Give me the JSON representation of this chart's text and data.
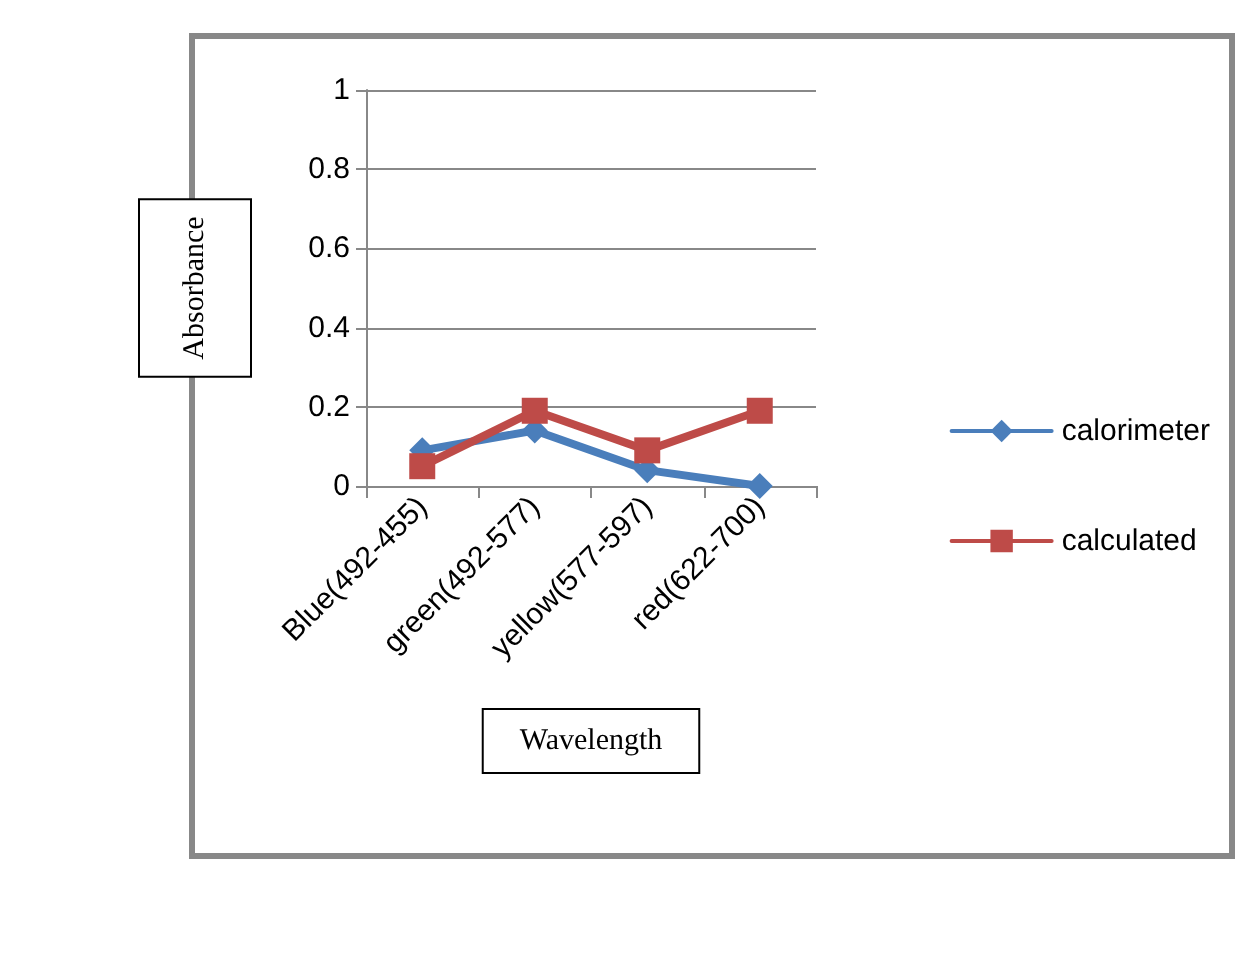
{
  "chart_data": {
    "type": "line",
    "xlabel": "Wavelength",
    "ylabel": "Absorbance",
    "categories": [
      "Blue(492-455)",
      "green(492-577)",
      "yellow(577-597)",
      "red(622-700)"
    ],
    "series": [
      {
        "name": "calorimeter",
        "color": "#4a7ebb",
        "marker": "diamond",
        "values": [
          0.09,
          0.14,
          0.04,
          0
        ]
      },
      {
        "name": "calculated",
        "color": "#be4b48",
        "marker": "square",
        "values": [
          0.05,
          0.19,
          0.09,
          0.19
        ]
      }
    ],
    "ylim": [
      0,
      1
    ],
    "yticks": [
      0,
      0.2,
      0.4,
      0.6,
      0.8,
      1
    ],
    "grid": "y",
    "legend": "right",
    "line_style": "solid"
  }
}
